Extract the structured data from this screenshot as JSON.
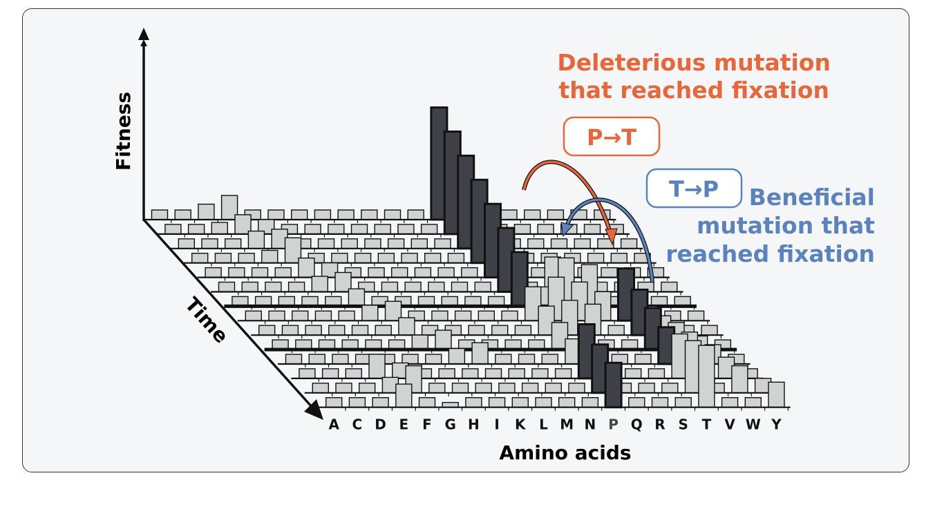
{
  "figure": {
    "fitness_label": "Fitness",
    "time_label": "Time",
    "x_label": "Amino acids",
    "amino_acids": [
      "A",
      "C",
      "D",
      "E",
      "F",
      "G",
      "H",
      "I",
      "K",
      "L",
      "M",
      "N",
      "P",
      "Q",
      "R",
      "S",
      "T",
      "V",
      "W",
      "Y"
    ],
    "deleterious": {
      "line1": "Deleterious mutation",
      "line2": "that reached fixation",
      "box": "P→T",
      "color": "#e8673a"
    },
    "beneficial": {
      "line1": "Beneficial",
      "line2": "mutation that",
      "line3": "reached fixation",
      "box": "T→P",
      "color": "#5a83bd"
    },
    "colors": {
      "fixed": "#404148",
      "other": "#cfd3d1",
      "background": "#f5f6f8"
    },
    "rows": [
      {
        "fixed": "P",
        "fitness": {
          "P": 11.6,
          "D": 1.6,
          "E": 2.5
        }
      },
      {
        "fixed": "P",
        "fitness": {
          "P": 10.6,
          "D": 1.2,
          "E": 2.0,
          "F": 1.5
        }
      },
      {
        "fixed": "P",
        "fitness": {
          "P": 9.6,
          "E": 1.8,
          "F": 2.0
        }
      },
      {
        "fixed": "P",
        "fitness": {
          "P": 8.6,
          "E": 1.3,
          "F": 2.6
        }
      },
      {
        "fixed": "P",
        "fitness": {
          "P": 7.6,
          "F": 2.0,
          "G": 1.5
        }
      },
      {
        "fixed": "P",
        "fitness": {
          "P": 6.6,
          "F": 1.6,
          "G": 2.0,
          "R": 3.6
        }
      },
      {
        "fixed": "P",
        "fitness": {
          "P": 5.6,
          "G": 1.8,
          "Q": 2.0,
          "R": 5.0,
          "S": 4.3
        }
      },
      {
        "fixed": "T",
        "fitness": {
          "T": 5.4,
          "G": 1.6,
          "H": 2.0,
          "P": 3.5,
          "Q": 4.5,
          "R": 4.0,
          "S": 3.0,
          "V": 1.5
        }
      },
      {
        "fixed": "T",
        "fitness": {
          "T": 4.7,
          "H": 1.8,
          "P": 3.0,
          "Q": 3.6,
          "R": 3.2,
          "V": 2.0
        }
      },
      {
        "fixed": "T",
        "fitness": {
          "T": 4.3,
          "H": 1.5,
          "I": 2.0,
          "P": 2.8,
          "V": 2.8,
          "W": 1.4
        }
      },
      {
        "fixed": "T",
        "fitness": {
          "T": 3.8,
          "I": 1.6,
          "K": 2.2,
          "P": 2.6,
          "V": 3.3,
          "W": 2.0
        }
      },
      {
        "fixed": "P",
        "fitness": {
          "P": 5.6,
          "E": 2.5,
          "F": 1.6,
          "T": 4.6,
          "V": 2.6,
          "W": 2.2
        }
      },
      {
        "fixed": "P",
        "fitness": {
          "P": 5.0,
          "E": 1.6,
          "F": 2.8,
          "T": 5.4,
          "W": 2.8,
          "Y": 1.5
        }
      },
      {
        "fixed": "P",
        "fitness": {
          "P": 4.6,
          "D": 1.0,
          "E": 2.4,
          "G": 0.5,
          "T": 6.4,
          "Y": 2.6
        }
      }
    ]
  }
}
